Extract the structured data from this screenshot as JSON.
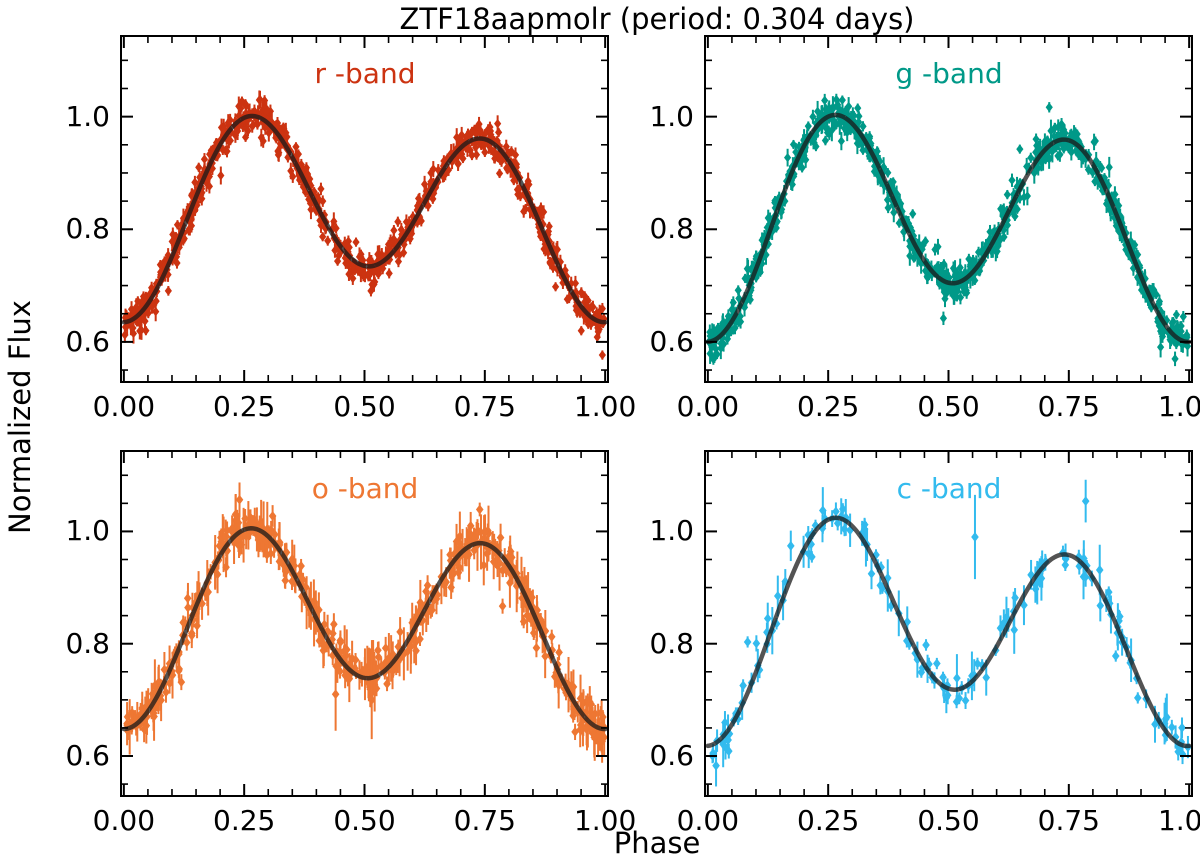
{
  "title": "ZTF18aapmolr (period: 0.304 days)",
  "xlabel": "Phase",
  "ylabel": "Normalized Flux",
  "axes": {
    "xlim": [
      -0.008,
      1.008
    ],
    "ylim": [
      0.527,
      1.145
    ],
    "xticks": [
      0.0,
      0.25,
      0.5,
      0.75,
      1.0
    ],
    "xtick_labels": [
      "0.00",
      "0.25",
      "0.50",
      "0.75",
      "1.00"
    ],
    "yticks": [
      0.6,
      0.8,
      1.0
    ],
    "ytick_labels": [
      "0.6",
      "0.8",
      "1.0"
    ],
    "x_minor_step": 0.05,
    "y_minor_step": 0.05,
    "grid": false,
    "tick_direction": "in",
    "ticks_all_sides": true
  },
  "fit": {
    "color": "#1a1a1a",
    "opacity": 0.75,
    "linewidth": 4.5,
    "model": "f(p) = c0 + c1*cos(2pi p) + c2*cos(4pi p) + s1*sin(2pi p) + s2*sin(4pi p)"
  },
  "chart_data": [
    {
      "type": "scatter",
      "band_label": "r -band",
      "color": "#CC3311",
      "position": "top-left",
      "fit_fourier": {
        "c0": 0.832,
        "c1": -0.05,
        "c2": -0.147,
        "s1": 0.019,
        "s2": -0.006
      },
      "fit_anchors": {
        "phase": [
          0,
          0.25,
          0.5,
          0.75,
          1.0
        ],
        "flux": [
          0.635,
          0.998,
          0.735,
          0.96,
          0.635
        ]
      },
      "scatter": {
        "n_points": 850,
        "flux_sigma": 0.014,
        "err_range": [
          0.008,
          0.018
        ],
        "seed": 11,
        "marker": "diamond",
        "marker_px": 3.6
      },
      "outliers": []
    },
    {
      "type": "scatter",
      "band_label": "g -band",
      "color": "#009988",
      "position": "top-right",
      "fit_fourier": {
        "c0": 0.81575,
        "c1": -0.0525,
        "c2": -0.16325,
        "s1": 0.021,
        "s2": -0.006
      },
      "fit_anchors": {
        "phase": [
          0,
          0.25,
          0.5,
          0.75,
          1.0
        ],
        "flux": [
          0.6,
          1.0,
          0.705,
          0.958,
          0.6
        ]
      },
      "scatter": {
        "n_points": 850,
        "flux_sigma": 0.014,
        "err_range": [
          0.008,
          0.02
        ],
        "seed": 22,
        "marker": "diamond",
        "marker_px": 3.6
      },
      "outliers": []
    },
    {
      "type": "scatter",
      "band_label": "o -band",
      "color": "#EE7733",
      "position": "bottom-left",
      "fit_fourier": {
        "c0": 0.842,
        "c1": -0.0455,
        "c2": -0.1485,
        "s1": 0.0125,
        "s2": -0.005
      },
      "fit_anchors": {
        "phase": [
          0,
          0.25,
          0.5,
          0.75,
          1.0
        ],
        "flux": [
          0.648,
          1.003,
          0.739,
          0.978,
          0.648
        ]
      },
      "scatter": {
        "n_points": 520,
        "flux_sigma": 0.016,
        "err_range": [
          0.012,
          0.05
        ],
        "seed": 33,
        "marker": "diamond",
        "marker_px": 3.8
      },
      "outliers": [
        {
          "phase": 0.44,
          "flux": 0.71,
          "err": 0.065
        },
        {
          "phase": 0.515,
          "flux": 0.7,
          "err": 0.07
        }
      ]
    },
    {
      "type": "scatter",
      "band_label": "c -band",
      "color": "#33BBEE",
      "position": "bottom-right",
      "fit_fourier": {
        "c0": 0.82925,
        "c1": -0.051,
        "c2": -0.16025,
        "s1": 0.0315,
        "s2": -0.008
      },
      "fit_anchors": {
        "phase": [
          0,
          0.25,
          0.5,
          0.75,
          1.0
        ],
        "flux": [
          0.618,
          1.021,
          0.72,
          0.958,
          0.618
        ]
      },
      "scatter": {
        "n_points": 165,
        "flux_sigma": 0.016,
        "err_range": [
          0.01,
          0.045
        ],
        "seed": 44,
        "marker": "diamond",
        "marker_px": 3.8
      },
      "outliers": [
        {
          "phase": 0.555,
          "flux": 0.99,
          "err": 0.075
        },
        {
          "phase": 0.785,
          "flux": 1.054,
          "err": 0.038
        }
      ]
    }
  ]
}
